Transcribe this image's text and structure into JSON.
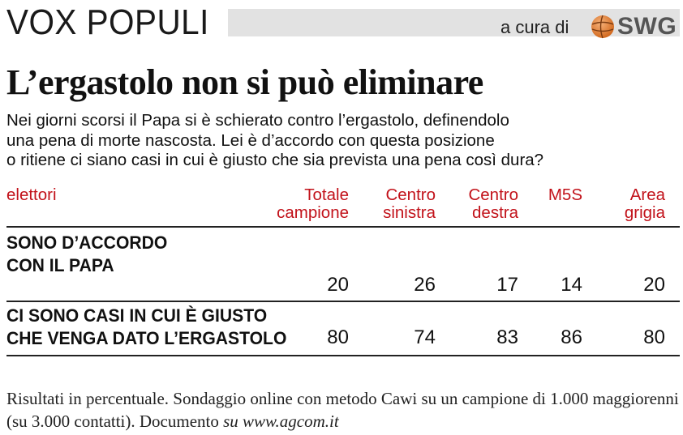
{
  "header": {
    "section_title": "VOX POPULI",
    "credit_text": "a cura di",
    "logo_text": "SWG"
  },
  "title": "L’ergastolo non si può eliminare",
  "question_lines": [
    "Nei giorni scorsi il Papa si è schierato contro l’ergastolo, definendolo",
    "una pena di morte nascosta. Lei è d’accordo con questa posizione",
    "o ritiene ci siano casi in cui è giusto che sia prevista una pena così dura?"
  ],
  "colors": {
    "accent": "#c2121a",
    "header_bar": "#e2e2e2",
    "text": "#111111"
  },
  "chart_data": {
    "type": "table",
    "row_header": "elettori",
    "columns": [
      [
        "Totale",
        "campione"
      ],
      [
        "Centro",
        "sinistra"
      ],
      [
        "Centro",
        "destra"
      ],
      [
        "M5S",
        ""
      ],
      [
        "Area",
        "grigia"
      ]
    ],
    "rows": [
      {
        "label_lines": [
          "SONO D’ACCORDO",
          "CON IL PAPA"
        ],
        "values": [
          "20",
          "26",
          "17",
          "14",
          "20"
        ]
      },
      {
        "label_lines": [
          "CI SONO CASI IN CUI È GIUSTO",
          "CHE VENGA DATO L’ERGASTOLO"
        ],
        "values": [
          "80",
          "74",
          "83",
          "86",
          "80"
        ]
      }
    ],
    "unit": "percent"
  },
  "footnote": {
    "text": "Risultati in percentuale. Sondaggio online con metodo Cawi su un campione di 1.000 maggiorenni (su 3.000 contatti). Documento",
    "italic": "su www.agcom.it"
  }
}
